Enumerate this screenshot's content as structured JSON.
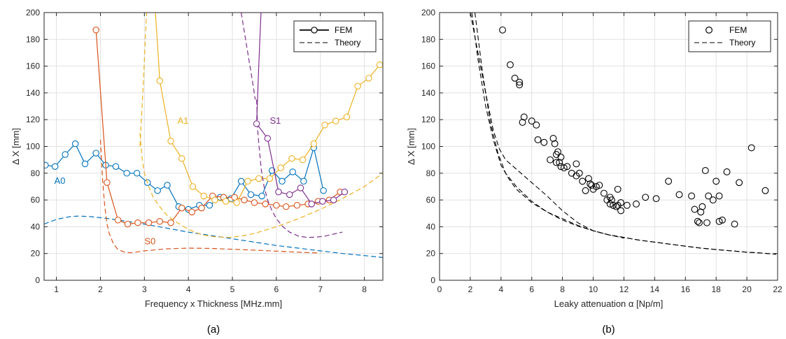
{
  "colors": {
    "A0": "#0072BD",
    "S0": "#D95319",
    "A1": "#EDB120",
    "S1": "#7E2F8E",
    "black": "#000000",
    "grid": "#e1e1e1"
  },
  "chart_data": [
    {
      "type": "line",
      "panel_label": "(a)",
      "xlabel": "Frequency x Thickness [MHz.mm]",
      "ylabel": "Δ X [mm]",
      "xlim": [
        0.72,
        8.42
      ],
      "ylim": [
        0,
        200
      ],
      "xticks": [
        1,
        2,
        3,
        4,
        5,
        6,
        7,
        8
      ],
      "yticks": [
        0,
        20,
        40,
        60,
        80,
        100,
        120,
        140,
        160,
        180,
        200
      ],
      "grid": true,
      "legend": {
        "position": "top-right",
        "entries": [
          {
            "label": "FEM",
            "style": "solid-circle"
          },
          {
            "label": "Theory",
            "style": "dashed"
          }
        ]
      },
      "series": [
        {
          "name": "A0",
          "color_key": "A0",
          "fem": {
            "x": [
              0.75,
              0.97,
              1.2,
              1.43,
              1.65,
              1.9,
              2.12,
              2.35,
              2.6,
              2.83,
              3.07,
              3.3,
              3.52,
              3.78,
              4.0,
              4.25,
              4.48,
              4.72,
              4.97,
              5.2,
              5.42,
              5.67,
              5.9,
              6.13,
              6.37,
              6.62,
              6.85,
              7.07
            ],
            "y": [
              86,
              85,
              94,
              102,
              87,
              95,
              86,
              85,
              80,
              80,
              73,
              67,
              71,
              55,
              53,
              56,
              56,
              62,
              61,
              74,
              64,
              63,
              82,
              74,
              81,
              74,
              99,
              67
            ]
          },
          "theory": {
            "x": [
              0.72,
              1.0,
              1.3,
              1.5,
              1.8,
              2.2,
              2.6,
              3.0,
              3.5,
              4.0,
              4.5,
              5.0,
              5.5,
              6.0,
              6.5,
              7.0,
              7.5,
              8.0,
              8.42
            ],
            "y": [
              42,
              45.5,
              47.5,
              48,
              47.5,
              46,
              44,
              42,
              39,
              36,
              33.5,
              31,
              28.5,
              26,
              24,
              22,
              20,
              18.5,
              17
            ]
          }
        },
        {
          "name": "S0",
          "color_key": "S0",
          "fem": {
            "x": [
              1.9,
              2.15,
              2.4,
              2.62,
              2.85,
              3.1,
              3.35,
              3.6,
              3.85,
              4.08,
              4.3,
              4.55,
              4.8,
              5.05,
              5.27,
              5.5,
              5.75,
              6.0,
              6.22,
              6.47,
              6.72,
              6.95,
              7.2,
              7.45
            ],
            "y": [
              187,
              73,
              45,
              42,
              43,
              43,
              44,
              43,
              54,
              51,
              54,
              63,
              62,
              62,
              60,
              58,
              57,
              56,
              55,
              56,
              57,
              59,
              60,
              66
            ]
          },
          "theory": {
            "x": [
              2.0,
              2.05,
              2.1,
              2.15,
              2.2,
              2.3,
              2.4,
              2.55,
              2.7,
              3.0,
              3.5,
              4.0,
              4.5,
              5.0,
              5.5,
              6.0,
              6.5,
              7.0
            ],
            "y": [
              105,
              75,
              55,
              42,
              35,
              27,
              23,
              21,
              20.5,
              22,
              23.5,
              24,
              23.8,
              23.2,
              22.5,
              21.8,
              21,
              20.3
            ]
          }
        },
        {
          "name": "A1",
          "color_key": "A1",
          "fem": {
            "x": [
              3.35,
              3.6,
              3.85,
              4.1,
              4.35,
              4.6,
              4.85,
              5.1,
              5.35,
              5.6,
              5.85,
              6.1,
              6.35,
              6.6,
              6.85,
              7.1,
              7.35,
              7.6,
              7.85,
              8.1,
              8.35
            ],
            "y": [
              149,
              104,
              91,
              70,
              63,
              60,
              59,
              58,
              74,
              76,
              76,
              84,
              91,
              90,
              102,
              116,
              119,
              122,
              145,
              151,
              161
            ]
          },
          "theory": {
            "x": [
              2.9,
              2.95,
              3.0,
              3.1,
              3.2,
              3.35,
              3.5,
              3.7,
              4.0,
              4.3,
              4.6,
              4.9,
              5.2,
              5.5,
              6.0,
              6.5,
              7.0,
              7.5,
              8.0,
              8.42
            ],
            "y": [
              110,
              90,
              80,
              70,
              62,
              55,
              49,
              44,
              38,
              34,
              32.5,
              32,
              33,
              35,
              40,
              46,
              53,
              61,
              70,
              80
            ]
          }
        },
        {
          "name": "S1",
          "color_key": "S1",
          "fem": {
            "x": [
              5.55,
              5.8,
              6.05,
              6.3,
              6.55,
              6.8,
              7.05,
              7.3,
              7.55
            ],
            "y": [
              117,
              106,
              66,
              64,
              69,
              57,
              59,
              60,
              66
            ]
          },
          "theory": {
            "x": [
              5.55,
              5.58,
              5.62,
              5.66,
              5.72,
              5.8,
              5.9,
              6.0,
              6.15,
              6.3,
              6.5,
              6.7,
              6.9,
              7.1,
              7.3,
              7.5
            ],
            "y": [
              135,
              110,
              95,
              82,
              70,
              60,
              52,
              46,
              40,
              36,
              33,
              32,
              32.2,
              33,
              34.5,
              36
            ]
          }
        }
      ],
      "annotations": [
        {
          "text": "A0",
          "x": 0.95,
          "y": 72,
          "color_key": "A0"
        },
        {
          "text": "S0",
          "x": 3.0,
          "y": 27,
          "color_key": "S0"
        },
        {
          "text": "A1",
          "x": 3.75,
          "y": 117,
          "color_key": "A1"
        },
        {
          "text": "S1",
          "x": 5.85,
          "y": 117,
          "color_key": "S1"
        }
      ],
      "steep_branches": [
        {
          "color_key": "A1",
          "kind": "theory",
          "x": [
            2.9,
            2.94,
            2.98,
            3.02,
            3.05
          ],
          "y": [
            100,
            125,
            150,
            180,
            200
          ]
        },
        {
          "color_key": "A1",
          "kind": "fem",
          "x": [
            3.35,
            3.3,
            3.25
          ],
          "y": [
            149,
            175,
            200
          ]
        },
        {
          "color_key": "S1",
          "kind": "fem",
          "x": [
            5.55,
            5.6,
            5.65
          ],
          "y": [
            117,
            160,
            200
          ]
        },
        {
          "color_key": "S1",
          "kind": "theory",
          "x": [
            5.2,
            5.35,
            5.45,
            5.52
          ],
          "y": [
            200,
            170,
            150,
            135
          ]
        }
      ]
    },
    {
      "type": "scatter",
      "panel_label": "(b)",
      "xlabel": "Leaky attenuation α [Np/m]",
      "ylabel": "Δ X [mm]",
      "xlim": [
        0,
        22
      ],
      "ylim": [
        0,
        200
      ],
      "xticks": [
        0,
        2,
        4,
        6,
        8,
        10,
        12,
        14,
        16,
        18,
        20,
        22
      ],
      "yticks": [
        0,
        20,
        40,
        60,
        80,
        100,
        120,
        140,
        160,
        180,
        200
      ],
      "grid": true,
      "legend": {
        "position": "top-right",
        "entries": [
          {
            "label": "FEM",
            "style": "circle"
          },
          {
            "label": "Theory",
            "style": "dashed"
          }
        ]
      },
      "series": [
        {
          "name": "FEM",
          "color_key": "black",
          "points": [
            [
              4.1,
              187
            ],
            [
              4.6,
              161
            ],
            [
              4.9,
              151
            ],
            [
              5.2,
              148
            ],
            [
              5.2,
              146
            ],
            [
              5.4,
              118
            ],
            [
              5.5,
              122
            ],
            [
              6.0,
              119
            ],
            [
              6.3,
              116
            ],
            [
              6.4,
              105
            ],
            [
              6.8,
              103
            ],
            [
              7.2,
              90
            ],
            [
              7.4,
              106
            ],
            [
              7.5,
              102
            ],
            [
              7.6,
              94
            ],
            [
              7.7,
              96
            ],
            [
              7.9,
              92
            ],
            [
              7.8,
              88
            ],
            [
              7.9,
              85
            ],
            [
              8.1,
              84
            ],
            [
              7.6,
              88
            ],
            [
              8.3,
              85
            ],
            [
              8.6,
              80
            ],
            [
              8.9,
              87
            ],
            [
              8.9,
              78
            ],
            [
              9.1,
              80
            ],
            [
              9.3,
              74
            ],
            [
              9.5,
              67
            ],
            [
              9.7,
              76
            ],
            [
              9.9,
              71
            ],
            [
              9.8,
              72
            ],
            [
              10.0,
              68
            ],
            [
              10.2,
              70
            ],
            [
              10.4,
              71
            ],
            [
              10.7,
              65
            ],
            [
              10.9,
              60
            ],
            [
              11.1,
              62
            ],
            [
              11.1,
              57
            ],
            [
              11.2,
              60
            ],
            [
              11.3,
              56
            ],
            [
              11.5,
              55
            ],
            [
              11.6,
              68
            ],
            [
              11.6,
              56
            ],
            [
              11.8,
              58
            ],
            [
              11.8,
              52
            ],
            [
              12.2,
              56
            ],
            [
              12.8,
              57
            ],
            [
              13.4,
              62
            ],
            [
              14.1,
              61
            ],
            [
              14.9,
              74
            ],
            [
              15.6,
              64
            ],
            [
              16.4,
              63
            ],
            [
              16.6,
              53
            ],
            [
              16.8,
              44
            ],
            [
              16.9,
              43
            ],
            [
              17.0,
              51
            ],
            [
              17.1,
              55
            ],
            [
              17.3,
              82
            ],
            [
              17.4,
              43
            ],
            [
              17.5,
              63
            ],
            [
              17.8,
              60
            ],
            [
              18.0,
              74
            ],
            [
              18.2,
              63
            ],
            [
              18.2,
              44
            ],
            [
              18.4,
              45
            ],
            [
              18.7,
              81
            ],
            [
              19.2,
              42
            ],
            [
              19.5,
              73
            ],
            [
              20.3,
              99
            ],
            [
              21.2,
              67
            ]
          ]
        }
      ],
      "theory_curves": [
        {
          "x": [
            2.1,
            2.5,
            3.0,
            3.5,
            4.0,
            4.5,
            5.0,
            6.0,
            7.0,
            8.0,
            9.0,
            10.0,
            11.0,
            12.0,
            13.0,
            14.0,
            15.0,
            16.0,
            17.0,
            18.0,
            19.0,
            20.0,
            21.0,
            21.9
          ],
          "y": [
            200,
            165,
            130,
            105,
            86,
            76,
            68,
            58,
            51,
            46,
            41,
            37,
            34,
            32,
            30,
            28.5,
            27,
            25.5,
            24,
            23,
            22,
            21,
            20.3,
            19.5
          ]
        },
        {
          "x": [
            2.3,
            2.8,
            3.3,
            3.8,
            4.3,
            5.0,
            6.0,
            7.0,
            8.0,
            9.0,
            10.0,
            11.0,
            12.0
          ],
          "y": [
            200,
            155,
            118,
            95,
            80,
            70,
            59,
            51,
            45,
            40.5,
            37,
            34,
            31.5
          ]
        },
        {
          "x": [
            2.0,
            2.5,
            3.0,
            3.5,
            3.9,
            4.3,
            5.0,
            6.0,
            7.0,
            8.0,
            9.0,
            10.0,
            11.0,
            12.0,
            13.0,
            14.0,
            15.0,
            16.0,
            17.0,
            18.0,
            19.0,
            20.0,
            21.0,
            21.9
          ],
          "y": [
            200,
            170,
            140,
            112,
            98,
            90,
            83,
            73,
            63,
            52,
            43,
            37,
            34,
            32,
            30,
            28.5,
            27,
            25.5,
            24,
            23,
            22,
            21,
            20.3,
            19.5
          ]
        }
      ]
    }
  ]
}
